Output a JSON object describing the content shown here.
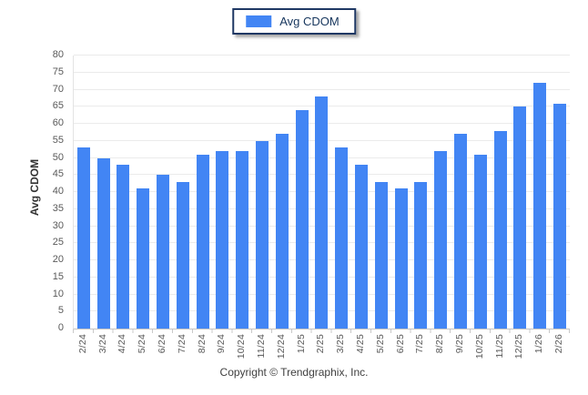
{
  "legend": {
    "label": "Avg CDOM",
    "swatch_color": "#4285f4"
  },
  "footer": {
    "copyright": "Copyright © Trendgraphix, Inc."
  },
  "colors": {
    "bar": "#4285f4",
    "legend_border": "#1f3864",
    "gridline": "#ebebeb",
    "axis_line": "#c4c4c4",
    "tick_label": "#595959"
  },
  "chart_data": {
    "type": "bar",
    "title": "",
    "legend_entries": [
      "Avg CDOM"
    ],
    "legend_position": "top-center",
    "grid": true,
    "xlabel": "",
    "ylabel": "Avg CDOM",
    "ylim": [
      0,
      80
    ],
    "ytick_step": 5,
    "categories": [
      "2/24",
      "3/24",
      "4/24",
      "5/24",
      "6/24",
      "7/24",
      "8/24",
      "9/24",
      "10/24",
      "11/24",
      "12/24",
      "1/25",
      "2/25",
      "3/25",
      "4/25",
      "5/25",
      "6/25",
      "7/25",
      "8/25",
      "9/25",
      "10/25",
      "11/25",
      "12/25",
      "1/26",
      "2/26"
    ],
    "series": [
      {
        "name": "Avg CDOM",
        "values": [
          53,
          50,
          48,
          41,
          45,
          43,
          51,
          52,
          52,
          55,
          57,
          64,
          68,
          53,
          48,
          43,
          41,
          43,
          52,
          57,
          51,
          58,
          65,
          72,
          66
        ]
      }
    ]
  }
}
